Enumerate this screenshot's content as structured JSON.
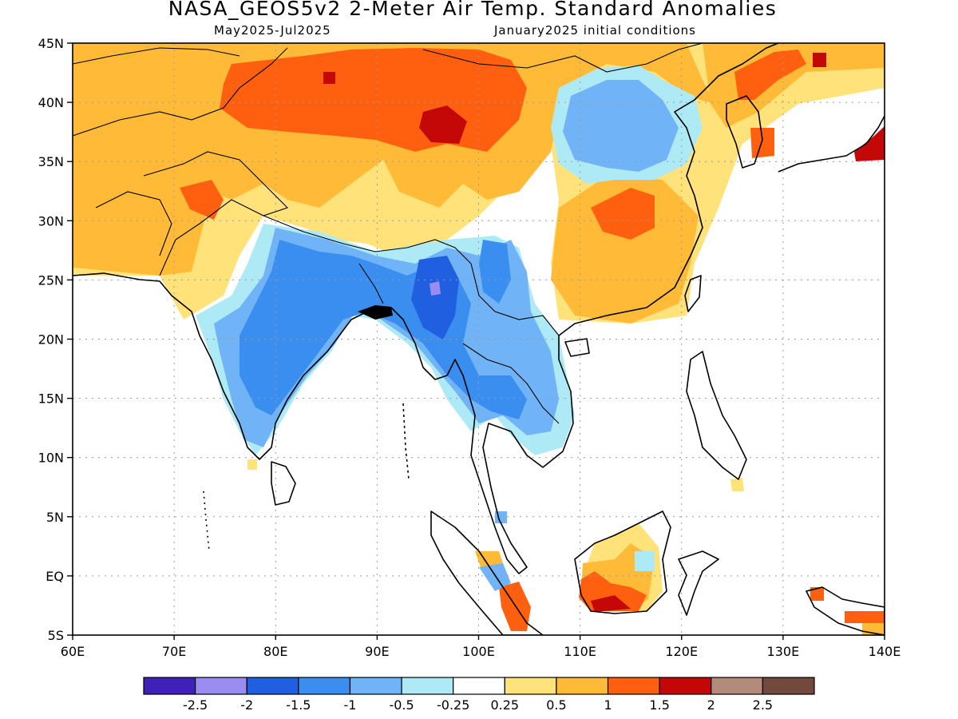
{
  "header": {
    "title": "NASA_GEOS5v2 2-Meter Air Temp. Standard Anomalies",
    "period": "May2025-Jul2025",
    "init": "January2025 initial conditions"
  },
  "map": {
    "lon_range": [
      60,
      140
    ],
    "lat_range": [
      -5,
      45
    ],
    "lat_ticks": [
      {
        "v": 45,
        "t": "45N"
      },
      {
        "v": 40,
        "t": "40N"
      },
      {
        "v": 35,
        "t": "35N"
      },
      {
        "v": 30,
        "t": "30N"
      },
      {
        "v": 25,
        "t": "25N"
      },
      {
        "v": 20,
        "t": "20N"
      },
      {
        "v": 15,
        "t": "15N"
      },
      {
        "v": 10,
        "t": "10N"
      },
      {
        "v": 5,
        "t": "5N"
      },
      {
        "v": 0,
        "t": "EQ"
      },
      {
        "v": -5,
        "t": "5S"
      }
    ],
    "lon_ticks": [
      {
        "v": 60,
        "t": "60E"
      },
      {
        "v": 70,
        "t": "70E"
      },
      {
        "v": 80,
        "t": "80E"
      },
      {
        "v": 90,
        "t": "90E"
      },
      {
        "v": 100,
        "t": "100E"
      },
      {
        "v": 110,
        "t": "110E"
      },
      {
        "v": 120,
        "t": "120E"
      },
      {
        "v": 130,
        "t": "130E"
      },
      {
        "v": 140,
        "t": "140E"
      }
    ],
    "gridlines": "dotted"
  },
  "colorbar": {
    "colors": [
      "#3f20b8",
      "#9a8cf0",
      "#1f5fe0",
      "#3a8ef0",
      "#70b4f7",
      "#aeeaf6",
      "#ffffff",
      "#ffe27a",
      "#ffbb38",
      "#ff6010",
      "#c40808",
      "#b48b7b",
      "#73493d"
    ],
    "labels": [
      "-2.5",
      "-2",
      "-1.5",
      "-1",
      "-0.5",
      "-0.25",
      "0.25",
      "0.5",
      "1",
      "1.5",
      "2",
      "2.5"
    ]
  }
}
